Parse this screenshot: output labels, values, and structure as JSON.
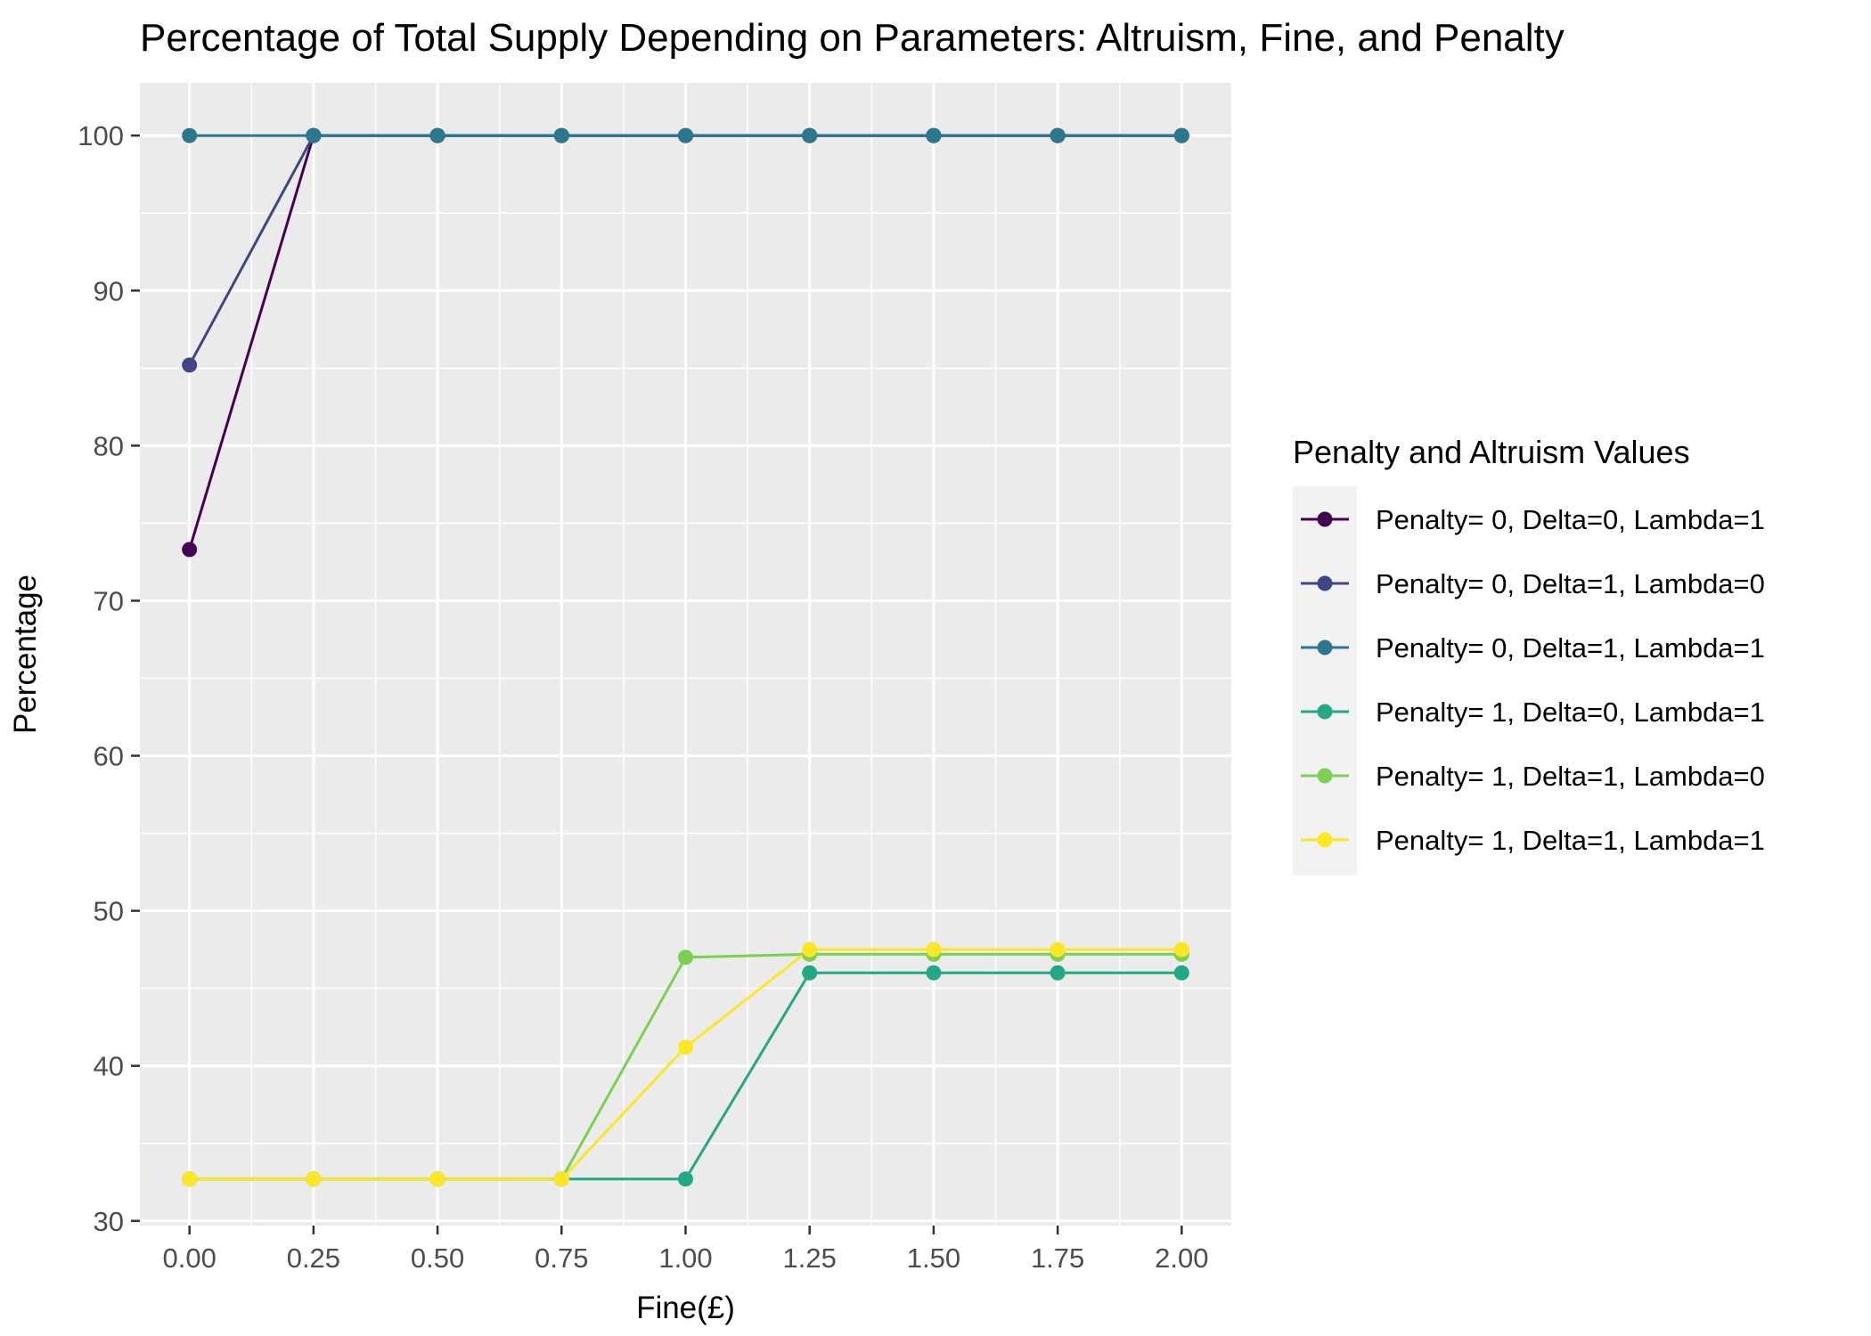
{
  "chart_data": {
    "type": "line",
    "title": "Percentage of Total Supply Depending on Parameters: Altruism, Fine, and Penalty",
    "xlabel": "Fine(£)",
    "ylabel": "Percentage",
    "x": [
      0.0,
      0.25,
      0.5,
      0.75,
      1.0,
      1.25,
      1.5,
      1.75,
      2.0
    ],
    "x_tick_labels": [
      "0.00",
      "0.25",
      "0.50",
      "0.75",
      "1.00",
      "1.25",
      "1.50",
      "1.75",
      "2.00"
    ],
    "y_ticks": [
      30,
      40,
      50,
      60,
      70,
      80,
      90,
      100
    ],
    "xlim": [
      -0.1,
      2.1
    ],
    "ylim": [
      29.7,
      103.4
    ],
    "grid": true,
    "legend": {
      "title": "Penalty and Altruism Values",
      "position": "right"
    },
    "series": [
      {
        "name": "Penalty= 0, Delta=0, Lambda=1",
        "color": "#440154",
        "values": [
          73.3,
          100,
          100,
          100,
          100,
          100,
          100,
          100,
          100
        ]
      },
      {
        "name": "Penalty= 0, Delta=1, Lambda=0",
        "color": "#414487",
        "values": [
          85.2,
          100,
          100,
          100,
          100,
          100,
          100,
          100,
          100
        ]
      },
      {
        "name": "Penalty= 0, Delta=1, Lambda=1",
        "color": "#2A788E",
        "values": [
          100,
          100,
          100,
          100,
          100,
          100,
          100,
          100,
          100
        ]
      },
      {
        "name": "Penalty= 1, Delta=0, Lambda=1",
        "color": "#22A884",
        "values": [
          32.7,
          32.7,
          32.7,
          32.7,
          32.7,
          46.0,
          46.0,
          46.0,
          46.0
        ]
      },
      {
        "name": "Penalty= 1, Delta=1, Lambda=0",
        "color": "#7AD151",
        "values": [
          32.7,
          32.7,
          32.7,
          32.7,
          47.0,
          47.2,
          47.2,
          47.2,
          47.2
        ]
      },
      {
        "name": "Penalty= 1, Delta=1, Lambda=1",
        "color": "#FDE725",
        "values": [
          32.7,
          32.7,
          32.7,
          32.7,
          41.2,
          47.5,
          47.5,
          47.5,
          47.5
        ]
      }
    ]
  }
}
